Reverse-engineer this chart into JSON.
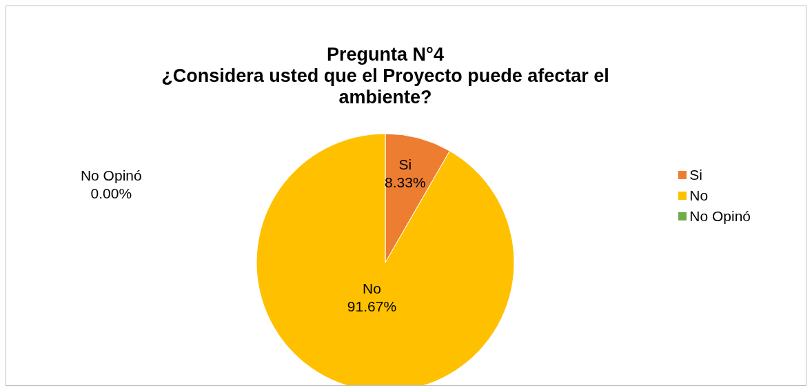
{
  "chart_data": {
    "type": "pie",
    "title": "Pregunta N°4\n¿Considera usted que el Proyecto puede afectar el\nambiente?",
    "categories": [
      "Si",
      "No",
      "No Opinó"
    ],
    "values": [
      8.33,
      91.67,
      0.0
    ],
    "colors": [
      "#ed7d31",
      "#ffc000",
      "#70ad47"
    ],
    "value_labels": [
      "8.33%",
      "91.67%",
      "0.00%"
    ],
    "legend": "right"
  }
}
